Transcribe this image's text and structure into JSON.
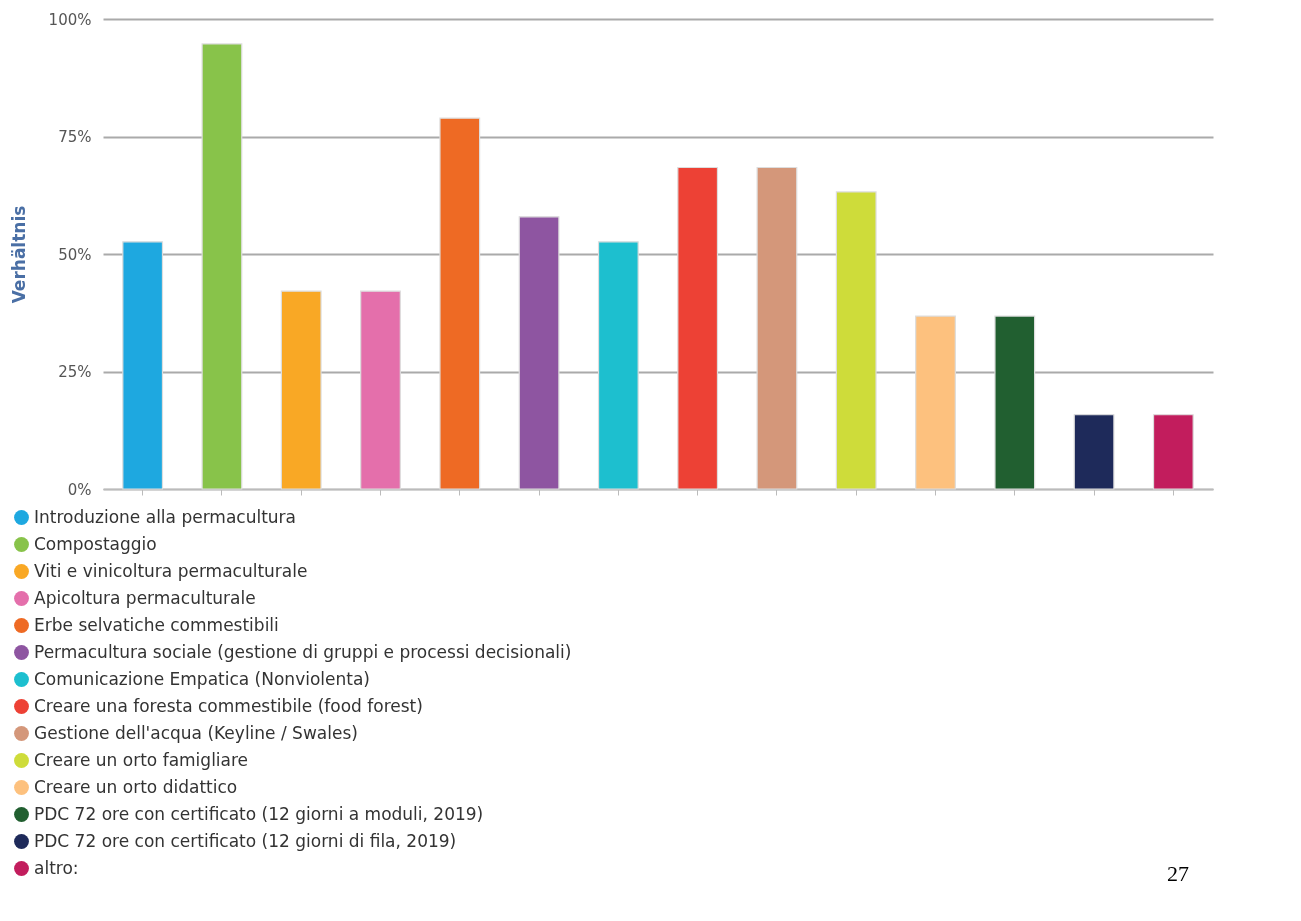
{
  "chart_data": {
    "type": "bar",
    "ylabel": "Verhältnis",
    "categories": [
      null,
      null,
      null,
      null,
      null,
      null,
      null,
      null,
      null,
      null,
      null,
      null,
      null,
      null
    ],
    "series": [
      {
        "name": "Introduzione alla permacultura",
        "color": "#1ea8e0",
        "values": [
          52.6,
          null,
          null,
          null,
          null,
          null,
          null,
          null,
          null,
          null,
          null,
          null,
          null,
          null
        ]
      },
      {
        "name": "Compostaggio",
        "color": "#88c34a",
        "values": [
          null,
          94.7,
          null,
          null,
          null,
          null,
          null,
          null,
          null,
          null,
          null,
          null,
          null,
          null
        ]
      },
      {
        "name": "Viti e vinicoltura permaculturale",
        "color": "#f9a825",
        "values": [
          null,
          null,
          42.1,
          null,
          null,
          null,
          null,
          null,
          null,
          null,
          null,
          null,
          null,
          null
        ]
      },
      {
        "name": "Apicoltura permaculturale",
        "color": "#e46fab",
        "values": [
          null,
          null,
          null,
          42.1,
          null,
          null,
          null,
          null,
          null,
          null,
          null,
          null,
          null,
          null
        ]
      },
      {
        "name": "Erbe selvatiche commestibili",
        "color": "#ee6a24",
        "values": [
          null,
          null,
          null,
          null,
          78.9,
          null,
          null,
          null,
          null,
          null,
          null,
          null,
          null,
          null
        ]
      },
      {
        "name": "Permacultura sociale (gestione di gruppi e processi decisionali)",
        "color": "#8e55a1",
        "values": [
          null,
          null,
          null,
          null,
          null,
          57.9,
          null,
          null,
          null,
          null,
          null,
          null,
          null,
          null
        ]
      },
      {
        "name": "Comunicazione Empatica (Nonviolenta)",
        "color": "#1dbfcf",
        "values": [
          null,
          null,
          null,
          null,
          null,
          null,
          52.6,
          null,
          null,
          null,
          null,
          null,
          null,
          null
        ]
      },
      {
        "name": "Creare una foresta commestibile (food forest)",
        "color": "#ed4135",
        "values": [
          null,
          null,
          null,
          null,
          null,
          null,
          null,
          68.4,
          null,
          null,
          null,
          null,
          null,
          null
        ]
      },
      {
        "name": "Gestione dell'acqua (Keyline / Swales)",
        "color": "#d4977a",
        "values": [
          null,
          null,
          null,
          null,
          null,
          null,
          null,
          null,
          68.4,
          null,
          null,
          null,
          null,
          null
        ]
      },
      {
        "name": "Creare un orto famigliare",
        "color": "#cedc3a",
        "values": [
          null,
          null,
          null,
          null,
          null,
          null,
          null,
          null,
          null,
          63.2,
          null,
          null,
          null,
          null
        ]
      },
      {
        "name": "Creare un orto didattico",
        "color": "#fdc17e",
        "values": [
          null,
          null,
          null,
          null,
          null,
          null,
          null,
          null,
          null,
          null,
          36.8,
          null,
          null,
          null
        ]
      },
      {
        "name": "PDC 72 ore con certificato (12 giorni a moduli, 2019)",
        "color": "#215f30",
        "values": [
          null,
          null,
          null,
          null,
          null,
          null,
          null,
          null,
          null,
          null,
          null,
          36.8,
          null,
          null
        ]
      },
      {
        "name": "PDC 72 ore con certificato (12 giorni di fila, 2019)",
        "color": "#1e2a5a",
        "values": [
          null,
          null,
          null,
          null,
          null,
          null,
          null,
          null,
          null,
          null,
          null,
          null,
          15.8,
          null
        ]
      },
      {
        "name": "altro:",
        "color": "#c21d5d",
        "values": [
          null,
          null,
          null,
          null,
          null,
          null,
          null,
          null,
          null,
          null,
          null,
          null,
          null,
          15.8
        ]
      }
    ],
    "ylim": [
      0,
      100
    ],
    "yticks": [
      {
        "value": 0,
        "label": "0%"
      },
      {
        "value": 25,
        "label": "25%"
      },
      {
        "value": 50,
        "label": "50%"
      },
      {
        "value": 75,
        "label": "75%"
      },
      {
        "value": 100,
        "label": "100%"
      }
    ],
    "grid": "y",
    "legend": "bottom",
    "tick_labels": "y",
    "annotations": [
      "27"
    ]
  }
}
